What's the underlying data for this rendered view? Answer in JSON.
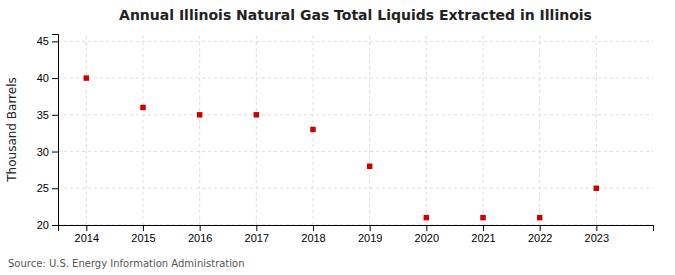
{
  "chart_data": {
    "type": "scatter",
    "title": "Annual Illinois Natural Gas Total Liquids Extracted in Illinois",
    "y_label": "Thousand Barrels",
    "source": "Source: U.S. Energy Information Administration",
    "x": [
      2014,
      2015,
      2016,
      2017,
      2018,
      2019,
      2020,
      2021,
      2022,
      2023
    ],
    "values": [
      40,
      36,
      35,
      35,
      33,
      28,
      21,
      21,
      21,
      25
    ],
    "color": "#cc0000",
    "marker": "square",
    "xlim": [
      2013.5,
      2024.0
    ],
    "ylim": [
      20,
      46
    ],
    "xticks": [
      2014,
      2015,
      2016,
      2017,
      2018,
      2019,
      2020,
      2021,
      2022,
      2023
    ],
    "yticks": [
      20,
      25,
      30,
      35,
      40,
      45
    ],
    "grid": true
  }
}
